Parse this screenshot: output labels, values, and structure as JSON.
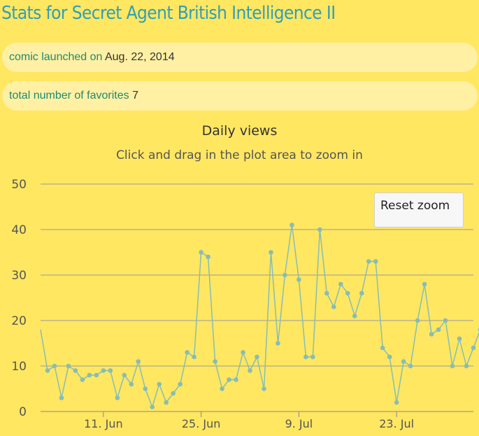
{
  "page": {
    "title": "Stats for Secret Agent British Intelligence II"
  },
  "info": {
    "launch_label": "comic launched on",
    "launch_value": "Aug. 22, 2014",
    "favorites_label": "total number of favorites",
    "favorites_value": "7"
  },
  "chart": {
    "reset_label": "Reset zoom",
    "line_color": "#87bdb5",
    "grid_color": "#9a9a9a"
  },
  "chart_data": {
    "type": "line",
    "title": "Daily views",
    "subtitle": "Click and drag in the plot area to zoom in",
    "x_start": "2014-06-02",
    "x_tick_labels": [
      "11. Jun",
      "25. Jun",
      "9. Jul",
      "23. Jul"
    ],
    "x_tick_dates": [
      "2014-06-11",
      "2014-06-25",
      "2014-07-09",
      "2014-07-23"
    ],
    "x_end": "2014-08-03",
    "ylim": [
      0,
      50
    ],
    "y_ticks": [
      0,
      10,
      20,
      30,
      40,
      50
    ],
    "series": [
      {
        "values": [
          18,
          9,
          10,
          3,
          10,
          9,
          7,
          8,
          8,
          9,
          9,
          3,
          8,
          6,
          11,
          5,
          1,
          6,
          2,
          4,
          6,
          13,
          12,
          35,
          34,
          11,
          5,
          7,
          7,
          13,
          9,
          12,
          5,
          35,
          15,
          30,
          41,
          29,
          12,
          12,
          40,
          26,
          23,
          28,
          26,
          21,
          26,
          33,
          33,
          14,
          12,
          2,
          11,
          10,
          20,
          28,
          17,
          18,
          20,
          10,
          16,
          10,
          14,
          18
        ]
      }
    ],
    "grid": true,
    "legend": "none"
  }
}
